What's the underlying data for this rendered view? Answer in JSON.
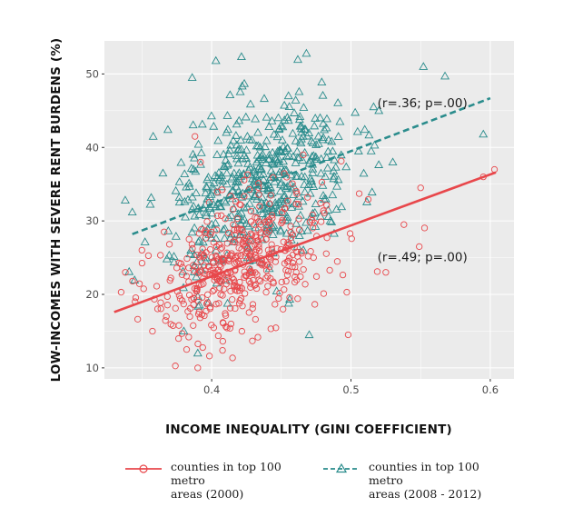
{
  "chart_data": {
    "type": "scatter",
    "xlabel": "INCOME INEQUALITY (GINI COEFFICIENT)",
    "ylabel": "LOW-INCOMES WITH SEVERE RENT BURDENS (%)",
    "xlim": [
      0.323,
      0.617
    ],
    "ylim": [
      8.5,
      54.5
    ],
    "xticks": [
      0.4,
      0.5,
      0.6
    ],
    "xtick_labels": [
      "0.4",
      "0.5",
      "0.6"
    ],
    "yticks": [
      10,
      20,
      30,
      40,
      50
    ],
    "ytick_labels": [
      "10",
      "20",
      "30",
      "40",
      "50"
    ],
    "grid": true,
    "series": [
      {
        "name": "counties in top 100 metro areas (2000)",
        "legend_lines": [
          "counties in top 100 metro",
          "areas (2000)"
        ],
        "color": "#e8474b",
        "marker": "circle",
        "trend_line": {
          "style": "solid",
          "x": [
            0.33,
            0.604
          ],
          "y": [
            17.6,
            36.6
          ]
        },
        "annotation": "(r=.49; p=.00)",
        "annotation_at": [
          0.519,
          24.5
        ],
        "center": [
          0.42,
          23.5
        ],
        "spread": [
          0.031,
          4.4
        ],
        "n": 470,
        "extreme_points": [
          [
            0.603,
            37.0
          ],
          [
            0.595,
            36.0
          ],
          [
            0.55,
            34.5
          ],
          [
            0.538,
            29.5
          ],
          [
            0.525,
            23.0
          ],
          [
            0.549,
            26.5
          ],
          [
            0.498,
            14.5
          ],
          [
            0.497,
            20.3
          ],
          [
            0.39,
            10.0
          ],
          [
            0.382,
            12.5
          ],
          [
            0.335,
            20.3
          ],
          [
            0.345,
            19.0
          ],
          [
            0.338,
            23.0
          ],
          [
            0.388,
            41.5
          ],
          [
            0.392,
            38.0
          ]
        ]
      },
      {
        "name": "counties in top 100 metro areas (2008 - 2012)",
        "legend_lines": [
          "counties in top 100 metro",
          "areas (2008 - 2012)"
        ],
        "color": "#2a8c8c",
        "marker": "triangle",
        "trend_line": {
          "style": "dashed",
          "x": [
            0.343,
            0.6
          ],
          "y": [
            28.2,
            46.7
          ]
        },
        "annotation": "(r=.36; p=.00)",
        "annotation_at": [
          0.519,
          45.5
        ],
        "center": [
          0.435,
          37.5
        ],
        "spread": [
          0.033,
          5.6
        ],
        "n": 520,
        "extreme_points": [
          [
            0.595,
            41.8
          ],
          [
            0.552,
            51.0
          ],
          [
            0.403,
            51.8
          ],
          [
            0.468,
            52.8
          ],
          [
            0.386,
            49.5
          ],
          [
            0.343,
            31.2
          ],
          [
            0.358,
            41.5
          ],
          [
            0.365,
            36.5
          ],
          [
            0.39,
            12.0
          ],
          [
            0.38,
            15.0
          ],
          [
            0.52,
            45.0
          ],
          [
            0.53,
            38.0
          ],
          [
            0.47,
            14.5
          ]
        ]
      }
    ]
  }
}
